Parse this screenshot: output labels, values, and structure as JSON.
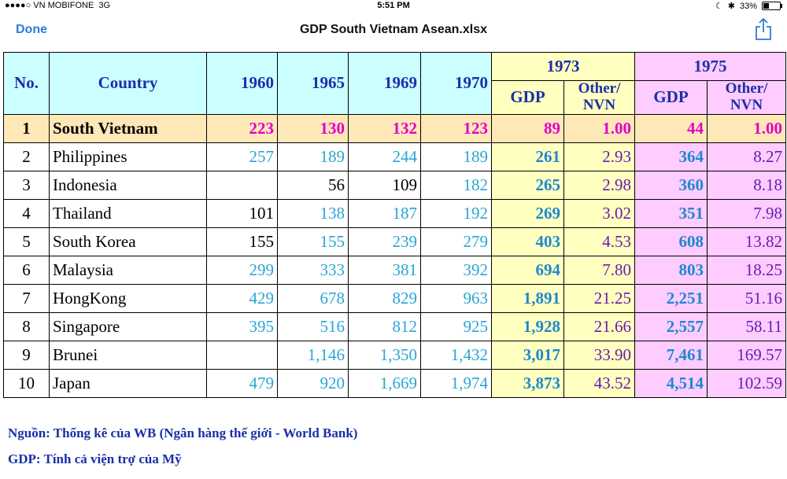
{
  "status": {
    "carrier": "VN MOBIFONE",
    "network": "3G",
    "time": "5:51 PM",
    "battery": "33%"
  },
  "nav": {
    "done": "Done",
    "title": "GDP South Vietnam Asean.xlsx"
  },
  "table": {
    "headers": {
      "no": "No.",
      "country": "Country",
      "y1960": "1960",
      "y1965": "1965",
      "y1969": "1969",
      "y1970": "1970",
      "y1973": "1973",
      "y1975": "1975",
      "gdp": "GDP",
      "other": "Other/ NVN"
    },
    "rows": [
      {
        "no": "1",
        "country": "South Vietnam",
        "y1960": "223",
        "y1965": "130",
        "y1969": "132",
        "y1970": "123",
        "gdp73": "89",
        "other73": "1.00",
        "gdp75": "44",
        "other75": "1.00"
      },
      {
        "no": "2",
        "country": "Philippines",
        "y1960": "257",
        "y1965": "189",
        "y1969": "244",
        "y1970": "189",
        "gdp73": "261",
        "other73": "2.93",
        "gdp75": "364",
        "other75": "8.27"
      },
      {
        "no": "3",
        "country": "Indonesia",
        "y1960": "",
        "y1965": "56",
        "y1969": "109",
        "y1970": "182",
        "gdp73": "265",
        "other73": "2.98",
        "gdp75": "360",
        "other75": "8.18"
      },
      {
        "no": "4",
        "country": "Thailand",
        "y1960": "101",
        "y1965": "138",
        "y1969": "187",
        "y1970": "192",
        "gdp73": "269",
        "other73": "3.02",
        "gdp75": "351",
        "other75": "7.98"
      },
      {
        "no": "5",
        "country": "South Korea",
        "y1960": "155",
        "y1965": "155",
        "y1969": "239",
        "y1970": "279",
        "gdp73": "403",
        "other73": "4.53",
        "gdp75": "608",
        "other75": "13.82"
      },
      {
        "no": "6",
        "country": "Malaysia",
        "y1960": "299",
        "y1965": "333",
        "y1969": "381",
        "y1970": "392",
        "gdp73": "694",
        "other73": "7.80",
        "gdp75": "803",
        "other75": "18.25"
      },
      {
        "no": "7",
        "country": "HongKong",
        "y1960": "429",
        "y1965": "678",
        "y1969": "829",
        "y1970": "963",
        "gdp73": "1,891",
        "other73": "21.25",
        "gdp75": "2,251",
        "other75": "51.16"
      },
      {
        "no": "8",
        "country": "Singapore",
        "y1960": "395",
        "y1965": "516",
        "y1969": "812",
        "y1970": "925",
        "gdp73": "1,928",
        "other73": "21.66",
        "gdp75": "2,557",
        "other75": "58.11"
      },
      {
        "no": "9",
        "country": "Brunei",
        "y1960": "",
        "y1965": "1,146",
        "y1969": "1,350",
        "y1970": "1,432",
        "gdp73": "3,017",
        "other73": "33.90",
        "gdp75": "7,461",
        "other75": "169.57"
      },
      {
        "no": "10",
        "country": "Japan",
        "y1960": "479",
        "y1965": "920",
        "y1969": "1,669",
        "y1970": "1,974",
        "gdp73": "3,873",
        "other73": "43.52",
        "gdp75": "4,514",
        "other75": "102.59"
      }
    ]
  },
  "notes": {
    "source": "Nguồn: Thống kê của WB (Ngân hàng thế giới - World Bank)",
    "gdp_note": "GDP: Tính cả viện trợ của Mỹ"
  }
}
